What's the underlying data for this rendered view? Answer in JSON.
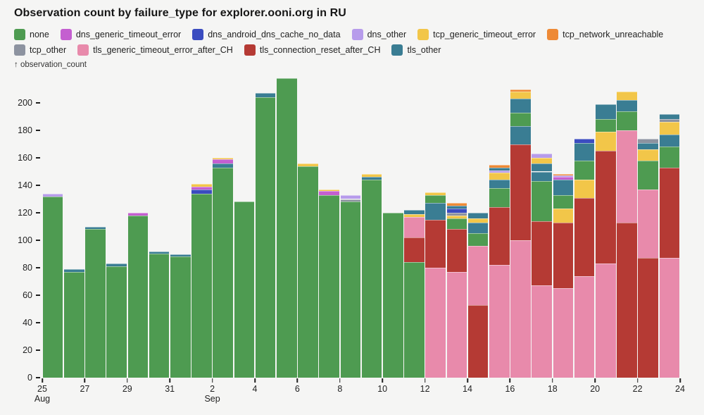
{
  "title": "Observation count by failure_type for explorer.ooni.org in RU",
  "y_axis_label": "↑ observation_count",
  "colors": {
    "none": "#4e9b51",
    "dns_generic_timeout_error": "#c45fd0",
    "dns_android_dns_cache_no_data": "#3b4cc0",
    "dns_other": "#b79ceb",
    "tcp_generic_timeout_error": "#f2c649",
    "tcp_network_unreachable": "#ee8a36",
    "tcp_other": "#8d93a0",
    "tls_generic_timeout_error_after_CH": "#e88aab",
    "tls_connection_reset_after_CH": "#b53a34",
    "tls_other": "#3a7d93"
  },
  "legend": [
    {
      "id": "none",
      "label": "none"
    },
    {
      "id": "dns_generic_timeout_error",
      "label": "dns_generic_timeout_error"
    },
    {
      "id": "dns_android_dns_cache_no_data",
      "label": "dns_android_dns_cache_no_data"
    },
    {
      "id": "dns_other",
      "label": "dns_other"
    },
    {
      "id": "tcp_generic_timeout_error",
      "label": "tcp_generic_timeout_error"
    },
    {
      "id": "tcp_network_unreachable",
      "label": "tcp_network_unreachable"
    },
    {
      "id": "tcp_other",
      "label": "tcp_other"
    },
    {
      "id": "tls_generic_timeout_error_after_CH",
      "label": "tls_generic_timeout_error_after_CH"
    },
    {
      "id": "tls_connection_reset_after_CH",
      "label": "tls_connection_reset_after_CH"
    },
    {
      "id": "tls_other",
      "label": "tls_other"
    }
  ],
  "chart_data": {
    "type": "bar",
    "stacked": true,
    "title": "Observation count by failure_type for explorer.ooni.org in RU",
    "xlabel": "date",
    "ylabel": "observation_count",
    "ylim": [
      0,
      220
    ],
    "y_ticks": [
      0,
      20,
      40,
      60,
      80,
      100,
      120,
      140,
      160,
      180,
      200
    ],
    "grid": false,
    "legend_position": "top",
    "x_ticks": [
      {
        "day_index": 0,
        "label": "25",
        "month": "Aug"
      },
      {
        "day_index": 2,
        "label": "27",
        "month": ""
      },
      {
        "day_index": 4,
        "label": "29",
        "month": ""
      },
      {
        "day_index": 6,
        "label": "31",
        "month": ""
      },
      {
        "day_index": 8,
        "label": "2",
        "month": "Sep"
      },
      {
        "day_index": 10,
        "label": "4",
        "month": ""
      },
      {
        "day_index": 12,
        "label": "6",
        "month": ""
      },
      {
        "day_index": 14,
        "label": "8",
        "month": ""
      },
      {
        "day_index": 16,
        "label": "10",
        "month": ""
      },
      {
        "day_index": 18,
        "label": "12",
        "month": ""
      },
      {
        "day_index": 20,
        "label": "14",
        "month": ""
      },
      {
        "day_index": 22,
        "label": "16",
        "month": ""
      },
      {
        "day_index": 24,
        "label": "18",
        "month": ""
      },
      {
        "day_index": 26,
        "label": "20",
        "month": ""
      },
      {
        "day_index": 28,
        "label": "22",
        "month": ""
      },
      {
        "day_index": 30,
        "label": "24",
        "month": ""
      }
    ],
    "bars": [
      {
        "date": "Aug 25",
        "total": 134,
        "segments": [
          [
            "none",
            132
          ],
          [
            "dns_other",
            2
          ]
        ]
      },
      {
        "date": "Aug 26",
        "total": 79,
        "segments": [
          [
            "none",
            77
          ],
          [
            "tls_other",
            2
          ]
        ]
      },
      {
        "date": "Aug 27",
        "total": 110,
        "segments": [
          [
            "none",
            108
          ],
          [
            "tls_other",
            2
          ]
        ]
      },
      {
        "date": "Aug 28",
        "total": 83,
        "segments": [
          [
            "none",
            81
          ],
          [
            "tls_other",
            2
          ]
        ]
      },
      {
        "date": "Aug 29",
        "total": 120,
        "segments": [
          [
            "none",
            118
          ],
          [
            "dns_generic_timeout_error",
            2
          ]
        ]
      },
      {
        "date": "Aug 30",
        "total": 92,
        "segments": [
          [
            "none",
            90
          ],
          [
            "tls_other",
            2
          ]
        ]
      },
      {
        "date": "Aug 31",
        "total": 90,
        "segments": [
          [
            "none",
            88
          ],
          [
            "tls_other",
            2
          ]
        ]
      },
      {
        "date": "Sep 1",
        "total": 141,
        "segments": [
          [
            "none",
            134
          ],
          [
            "dns_android_dns_cache_no_data",
            3
          ],
          [
            "dns_generic_timeout_error",
            2
          ],
          [
            "tcp_generic_timeout_error",
            2
          ]
        ]
      },
      {
        "date": "Sep 2",
        "total": 160,
        "segments": [
          [
            "none",
            153
          ],
          [
            "tls_other",
            3
          ],
          [
            "dns_generic_timeout_error",
            3
          ],
          [
            "tcp_generic_timeout_error",
            1
          ]
        ]
      },
      {
        "date": "Sep 3",
        "total": 128,
        "segments": [
          [
            "none",
            128
          ]
        ]
      },
      {
        "date": "Sep 4",
        "total": 207,
        "segments": [
          [
            "none",
            204
          ],
          [
            "tls_other",
            3
          ]
        ]
      },
      {
        "date": "Sep 5",
        "total": 218,
        "segments": [
          [
            "none",
            218
          ]
        ]
      },
      {
        "date": "Sep 6",
        "total": 156,
        "segments": [
          [
            "none",
            154
          ],
          [
            "tcp_generic_timeout_error",
            2
          ]
        ]
      },
      {
        "date": "Sep 7",
        "total": 137,
        "segments": [
          [
            "none",
            133
          ],
          [
            "dns_generic_timeout_error",
            3
          ],
          [
            "tcp_generic_timeout_error",
            1
          ]
        ]
      },
      {
        "date": "Sep 8",
        "total": 133,
        "segments": [
          [
            "none",
            128
          ],
          [
            "tcp_other",
            2
          ],
          [
            "dns_other",
            3
          ]
        ]
      },
      {
        "date": "Sep 9",
        "total": 148,
        "segments": [
          [
            "none",
            144
          ],
          [
            "tls_other",
            2
          ],
          [
            "tcp_generic_timeout_error",
            2
          ]
        ]
      },
      {
        "date": "Sep 10",
        "total": 120,
        "segments": [
          [
            "none",
            120
          ]
        ]
      },
      {
        "date": "Sep 11",
        "total": 122,
        "segments": [
          [
            "none",
            84
          ],
          [
            "tls_connection_reset_after_CH",
            18
          ],
          [
            "tls_generic_timeout_error_after_CH",
            15
          ],
          [
            "tcp_generic_timeout_error",
            2
          ],
          [
            "tls_other",
            3
          ]
        ]
      },
      {
        "date": "Sep 12",
        "total": 135,
        "segments": [
          [
            "tls_generic_timeout_error_after_CH",
            80
          ],
          [
            "tls_connection_reset_after_CH",
            35
          ],
          [
            "tls_other",
            12
          ],
          [
            "none",
            6
          ],
          [
            "tcp_generic_timeout_error",
            2
          ]
        ]
      },
      {
        "date": "Sep 13",
        "total": 127,
        "segments": [
          [
            "tls_generic_timeout_error_after_CH",
            77
          ],
          [
            "tls_connection_reset_after_CH",
            31
          ],
          [
            "none",
            8
          ],
          [
            "tcp_generic_timeout_error",
            2
          ],
          [
            "tcp_other",
            2
          ],
          [
            "dns_android_dns_cache_no_data",
            3
          ],
          [
            "tls_other",
            2
          ],
          [
            "tcp_network_unreachable",
            2
          ]
        ]
      },
      {
        "date": "Sep 14",
        "total": 120,
        "segments": [
          [
            "tls_connection_reset_after_CH",
            53
          ],
          [
            "tls_generic_timeout_error_after_CH",
            43
          ],
          [
            "none",
            9
          ],
          [
            "tls_other",
            8
          ],
          [
            "tcp_generic_timeout_error",
            3
          ],
          [
            "tls_other",
            4
          ]
        ]
      },
      {
        "date": "Sep 15",
        "total": 155,
        "segments": [
          [
            "tls_generic_timeout_error_after_CH",
            82
          ],
          [
            "tls_connection_reset_after_CH",
            42
          ],
          [
            "none",
            14
          ],
          [
            "tls_other",
            6
          ],
          [
            "tcp_generic_timeout_error",
            5
          ],
          [
            "dns_other",
            2
          ],
          [
            "tls_other",
            2
          ],
          [
            "tcp_network_unreachable",
            2
          ]
        ]
      },
      {
        "date": "Sep 16",
        "total": 210,
        "segments": [
          [
            "tls_generic_timeout_error_after_CH",
            100
          ],
          [
            "tls_connection_reset_after_CH",
            70
          ],
          [
            "tls_other",
            13
          ],
          [
            "none",
            10
          ],
          [
            "tls_other",
            10
          ],
          [
            "tcp_generic_timeout_error",
            5
          ],
          [
            "tcp_network_unreachable",
            2
          ]
        ]
      },
      {
        "date": "Sep 17",
        "total": 163,
        "segments": [
          [
            "tls_generic_timeout_error_after_CH",
            67
          ],
          [
            "tls_connection_reset_after_CH",
            47
          ],
          [
            "none",
            29
          ],
          [
            "tls_other",
            7
          ],
          [
            "tls_other",
            6
          ],
          [
            "tcp_generic_timeout_error",
            4
          ],
          [
            "dns_other",
            3
          ]
        ]
      },
      {
        "date": "Sep 18",
        "total": 148,
        "segments": [
          [
            "tls_generic_timeout_error_after_CH",
            65
          ],
          [
            "tls_connection_reset_after_CH",
            48
          ],
          [
            "tcp_generic_timeout_error",
            10
          ],
          [
            "none",
            10
          ],
          [
            "tls_other",
            11
          ],
          [
            "dns_generic_timeout_error",
            2
          ],
          [
            "dns_other",
            1
          ],
          [
            "tcp_network_unreachable",
            1
          ]
        ]
      },
      {
        "date": "Sep 19",
        "total": 174,
        "segments": [
          [
            "tls_generic_timeout_error_after_CH",
            74
          ],
          [
            "tls_connection_reset_after_CH",
            57
          ],
          [
            "tcp_generic_timeout_error",
            13
          ],
          [
            "none",
            14
          ],
          [
            "tls_other",
            13
          ],
          [
            "dns_android_dns_cache_no_data",
            3
          ]
        ]
      },
      {
        "date": "Sep 20",
        "total": 199,
        "segments": [
          [
            "tls_generic_timeout_error_after_CH",
            83
          ],
          [
            "tls_connection_reset_after_CH",
            82
          ],
          [
            "tcp_generic_timeout_error",
            14
          ],
          [
            "none",
            9
          ],
          [
            "tls_other",
            11
          ]
        ]
      },
      {
        "date": "Sep 21",
        "total": 208,
        "segments": [
          [
            "tls_connection_reset_after_CH",
            113
          ],
          [
            "tls_generic_timeout_error_after_CH",
            67
          ],
          [
            "none",
            14
          ],
          [
            "tls_other",
            8
          ],
          [
            "tcp_generic_timeout_error",
            6
          ]
        ]
      },
      {
        "date": "Sep 22",
        "total": 174,
        "segments": [
          [
            "tls_connection_reset_after_CH",
            87
          ],
          [
            "tls_generic_timeout_error_after_CH",
            50
          ],
          [
            "none",
            21
          ],
          [
            "tcp_generic_timeout_error",
            8
          ],
          [
            "tls_other",
            5
          ],
          [
            "tcp_other",
            3
          ]
        ]
      },
      {
        "date": "Sep 23",
        "total": 192,
        "segments": [
          [
            "tls_generic_timeout_error_after_CH",
            87
          ],
          [
            "tls_connection_reset_after_CH",
            66
          ],
          [
            "none",
            15
          ],
          [
            "tls_other",
            9
          ],
          [
            "tcp_generic_timeout_error",
            9
          ],
          [
            "tcp_other",
            2
          ],
          [
            "tls_other",
            4
          ]
        ]
      }
    ]
  }
}
